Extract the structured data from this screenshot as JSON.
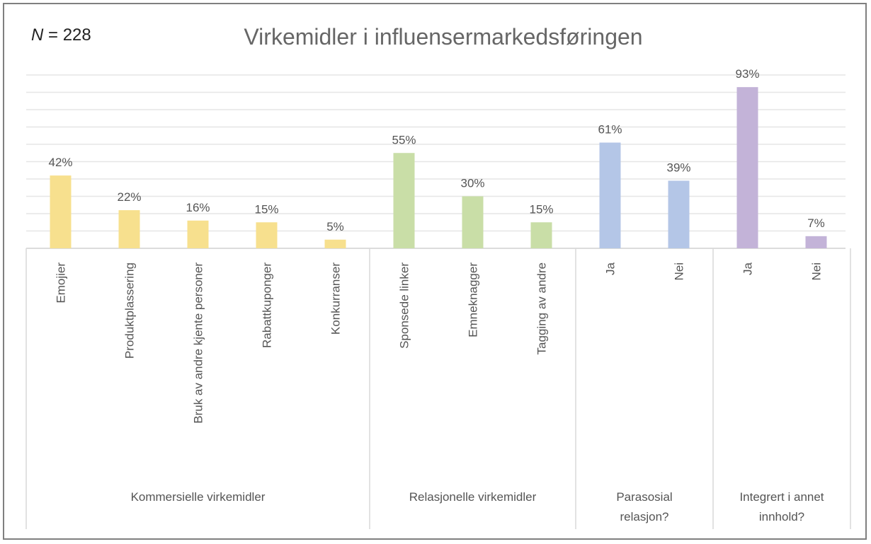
{
  "header": {
    "n_prefix": "N",
    "n_suffix": " = 228"
  },
  "chart_data": {
    "type": "bar",
    "title": "Virkemidler i influensermarkedsføringen",
    "xlabel": "",
    "ylabel": "",
    "ylim": [
      0,
      100
    ],
    "grid": true,
    "legend": "none",
    "value_suffix": "%",
    "groups": [
      {
        "name": "Kommersielle virkemidler",
        "name_lines": [
          "Kommersielle virkemidler"
        ],
        "color": "#f7e08e",
        "categories": [
          "Emojier",
          "Produktplassering",
          "Bruk av andre kjente personer",
          "Rabattkuponger",
          "Konkurranser"
        ],
        "values": [
          42,
          22,
          16,
          15,
          5
        ]
      },
      {
        "name": "Relasjonelle virkemidler",
        "name_lines": [
          "Relasjonelle virkemidler"
        ],
        "color": "#c9dea7",
        "categories": [
          "Sponsede linker",
          "Emneknagger",
          "Tagging av andre"
        ],
        "values": [
          55,
          30,
          15
        ]
      },
      {
        "name": "Parasosial relasjon?",
        "name_lines": [
          "Parasosial",
          "relasjon?"
        ],
        "color": "#b4c6e7",
        "categories": [
          "Ja",
          "Nei"
        ],
        "values": [
          61,
          39
        ]
      },
      {
        "name": "Integrert i annet innhold?",
        "name_lines": [
          "Integrert i annet",
          "innhold?"
        ],
        "color": "#c3b3d8",
        "categories": [
          "Ja",
          "Nei"
        ],
        "values": [
          93,
          7
        ]
      }
    ]
  }
}
